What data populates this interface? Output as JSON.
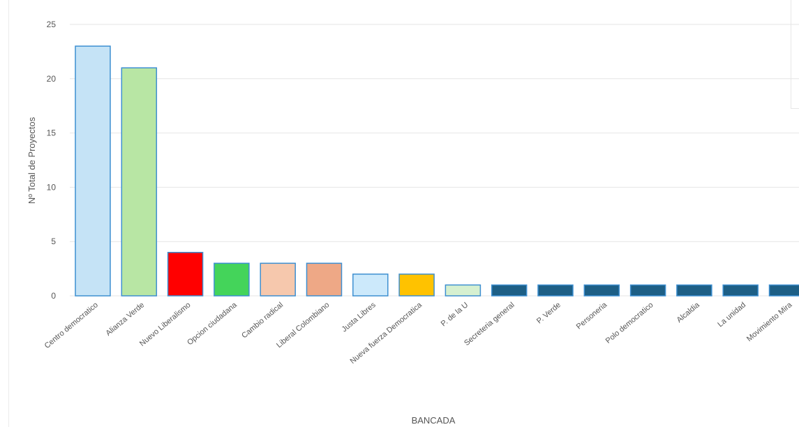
{
  "chart_data": {
    "type": "bar",
    "title": "",
    "xlabel": "BANCADA",
    "ylabel": "Nº Total de Proyectos",
    "ylim": [
      0,
      25
    ],
    "yticks": [
      0,
      5,
      10,
      15,
      20,
      25
    ],
    "grid": true,
    "categories": [
      "Centro democratico",
      "Alianza Verde",
      "Nuevo Liberalismo",
      "Opcion ciudadana",
      "Cambio radical",
      "Liberal Colombiano",
      "Justa Libres",
      "Nueva fuerza Democratica",
      "P. de la U",
      "Secreteria general",
      "P. Verde",
      "Personeria",
      "Polo democratico",
      "Alcaldia",
      "La unidad",
      "Movimiento Mira"
    ],
    "values": [
      23,
      21,
      4,
      3,
      3,
      3,
      2,
      2,
      1,
      1,
      1,
      1,
      1,
      1,
      1,
      1
    ],
    "colors": [
      "#c5e3f6",
      "#b8e6a4",
      "#ff0000",
      "#44d45a",
      "#f6c8ad",
      "#eea886",
      "#cce9fb",
      "#ffc200",
      "#d6f0d0",
      "#1d5f86",
      "#1d5f86",
      "#1d5f86",
      "#1d5f86",
      "#1d5f86",
      "#1d5f86",
      "#1d5f86"
    ],
    "border_color": "#3d8fd1"
  }
}
